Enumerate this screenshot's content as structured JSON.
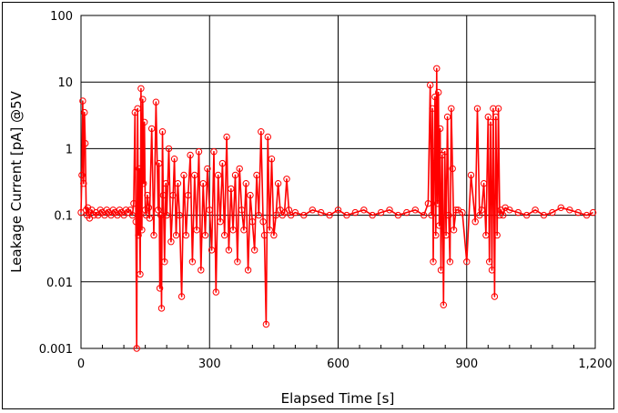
{
  "chart_data": {
    "type": "line",
    "xlabel": "Elapsed Time [s]",
    "ylabel": "Leakage Current [pA] @5V",
    "xlim": [
      0,
      1200
    ],
    "ylim": [
      0.001,
      100
    ],
    "y_scale": "log",
    "grid": true,
    "x_ticks": [
      0,
      300,
      600,
      900,
      1200
    ],
    "x_tick_labels": [
      "0",
      "300",
      "600",
      "900",
      "1,200"
    ],
    "y_ticks": [
      0.001,
      0.01,
      0.1,
      1,
      10,
      100
    ],
    "y_tick_labels": [
      "0.001",
      "0.01",
      "0.1",
      "1",
      "10",
      "100"
    ],
    "series_color": "#ff0000",
    "marker": "open-circle",
    "series": [
      {
        "x": [
          0,
          2,
          4,
          6,
          8,
          10,
          12,
          14,
          16,
          18,
          20,
          25,
          30,
          35,
          40,
          45,
          50,
          55,
          60,
          65,
          70,
          75,
          80,
          85,
          90,
          95,
          100,
          105,
          110,
          115,
          120,
          123,
          126,
          128,
          130,
          132,
          134,
          136,
          138,
          140,
          142,
          144,
          146,
          148,
          150,
          152,
          155,
          158,
          160,
          165,
          170,
          175,
          180,
          182,
          184,
          186,
          188,
          190,
          192,
          195,
          198,
          200,
          205,
          210,
          215,
          218,
          222,
          226,
          230,
          235,
          240,
          245,
          250,
          255,
          260,
          265,
          270,
          275,
          280,
          285,
          290,
          295,
          300,
          305,
          310,
          315,
          320,
          325,
          330,
          335,
          340,
          345,
          350,
          355,
          360,
          365,
          370,
          375,
          380,
          385,
          390,
          395,
          400,
          405,
          410,
          415,
          420,
          425,
          428,
          432,
          436,
          440,
          445,
          450,
          455,
          460,
          465,
          470,
          475,
          480,
          485,
          490,
          500,
          520,
          540,
          560,
          580,
          600,
          620,
          640,
          660,
          680,
          700,
          720,
          740,
          760,
          780,
          800,
          810,
          815,
          818,
          820,
          822,
          824,
          826,
          828,
          830,
          832,
          834,
          836,
          838,
          840,
          843,
          846,
          849,
          852,
          855,
          858,
          861,
          864,
          867,
          870,
          875,
          880,
          890,
          900,
          910,
          920,
          925,
          930,
          935,
          940,
          945,
          950,
          953,
          956,
          959,
          962,
          965,
          968,
          971,
          974,
          977,
          980,
          985,
          990,
          1000,
          1020,
          1040,
          1060,
          1080,
          1100,
          1120,
          1140,
          1160,
          1180,
          1195
        ],
        "y": [
          0.11,
          0.4,
          5.2,
          0.3,
          3.5,
          1.2,
          0.12,
          0.1,
          0.13,
          0.11,
          0.09,
          0.12,
          0.1,
          0.11,
          0.1,
          0.12,
          0.11,
          0.1,
          0.12,
          0.11,
          0.1,
          0.12,
          0.11,
          0.1,
          0.12,
          0.11,
          0.1,
          0.12,
          0.11,
          0.12,
          0.1,
          0.15,
          3.5,
          0.08,
          0.001,
          4.0,
          0.05,
          0.5,
          0.013,
          8.0,
          0.06,
          5.5,
          0.3,
          2.5,
          0.12,
          0.1,
          0.2,
          0.13,
          0.09,
          2.0,
          0.05,
          5.0,
          0.12,
          0.6,
          0.008,
          0.1,
          0.004,
          1.8,
          0.2,
          0.02,
          0.3,
          0.1,
          1.0,
          0.04,
          0.2,
          0.7,
          0.05,
          0.3,
          0.1,
          0.006,
          0.4,
          0.05,
          0.2,
          0.8,
          0.02,
          0.4,
          0.06,
          0.9,
          0.015,
          0.3,
          0.05,
          0.5,
          0.12,
          0.03,
          0.9,
          0.007,
          0.4,
          0.08,
          0.6,
          0.05,
          1.5,
          0.03,
          0.25,
          0.06,
          0.4,
          0.02,
          0.5,
          0.12,
          0.06,
          0.3,
          0.015,
          0.2,
          0.08,
          0.03,
          0.4,
          0.1,
          1.8,
          0.08,
          0.05,
          0.0023,
          1.5,
          0.06,
          0.7,
          0.05,
          0.1,
          0.3,
          0.12,
          0.1,
          0.11,
          0.35,
          0.12,
          0.1,
          0.11,
          0.1,
          0.12,
          0.11,
          0.1,
          0.12,
          0.1,
          0.11,
          0.12,
          0.1,
          0.11,
          0.12,
          0.1,
          0.11,
          0.12,
          0.1,
          0.15,
          9.0,
          0.1,
          4.0,
          0.02,
          0.6,
          6.0,
          0.05,
          16.0,
          0.15,
          7.0,
          0.07,
          2.0,
          0.015,
          0.8,
          0.0045,
          0.9,
          0.05,
          3.0,
          0.1,
          0.02,
          4.0,
          0.5,
          0.06,
          0.12,
          0.12,
          0.11,
          0.02,
          0.4,
          0.08,
          4.0,
          0.1,
          0.12,
          0.3,
          0.05,
          3.0,
          0.02,
          2.5,
          0.015,
          4.0,
          0.006,
          3.0,
          0.05,
          4.0,
          0.1,
          0.12,
          0.1,
          0.13,
          0.12,
          0.11,
          0.1,
          0.12,
          0.1,
          0.11,
          0.13,
          0.12,
          0.11,
          0.1,
          0.11
        ]
      }
    ]
  }
}
